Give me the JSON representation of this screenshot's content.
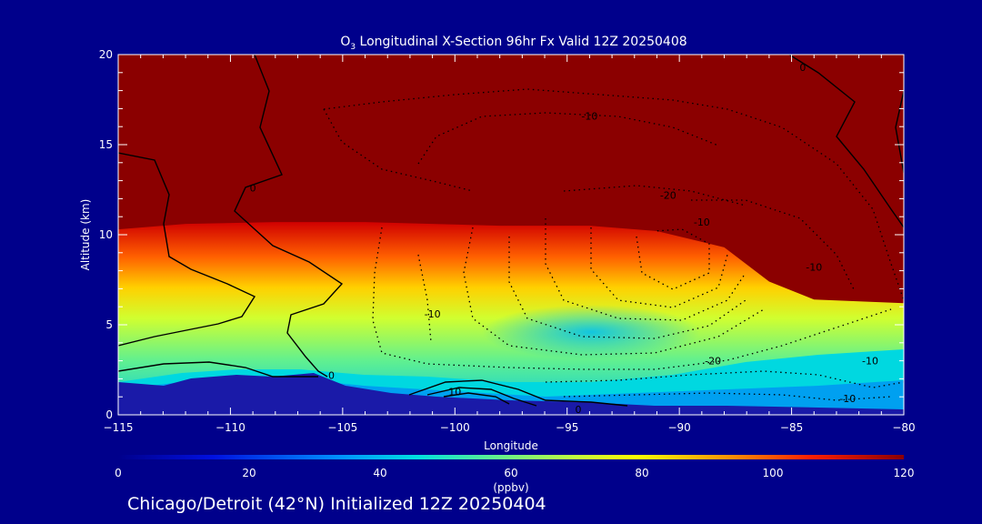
{
  "chart_data": {
    "type": "heatmap",
    "title_prefix": "O",
    "title_subscript": "3",
    "title_rest": " Longitudinal X-Section 96hr  Fx Valid 12Z 20250408",
    "xlabel": "Longitude",
    "ylabel": "Altitude (km)",
    "xlim": [
      -115,
      -80
    ],
    "ylim": [
      0,
      20
    ],
    "x_ticks": [
      -115,
      -110,
      -105,
      -100,
      -95,
      -90,
      -85,
      -80
    ],
    "y_ticks": [
      0,
      5,
      10,
      15,
      20
    ],
    "colorbar": {
      "label": "(ppbv)",
      "range": [
        0,
        120
      ],
      "ticks": [
        0,
        20,
        40,
        60,
        80,
        100,
        120
      ]
    },
    "colors": {
      "background": "#00008b",
      "ozone_high": "#8b0000",
      "terrain": "#1a1aa8"
    },
    "tropopause_km": [
      [
        -115,
        10.3
      ],
      [
        -112,
        10.6
      ],
      [
        -108,
        10.7
      ],
      [
        -104,
        10.7
      ],
      [
        -101,
        10.6
      ],
      [
        -98,
        10.5
      ],
      [
        -94,
        10.5
      ],
      [
        -91,
        10.2
      ],
      [
        -88,
        9.3
      ],
      [
        -86,
        7.4
      ],
      [
        -84,
        6.4
      ],
      [
        -82,
        6.3
      ],
      [
        -80,
        6.2
      ]
    ],
    "contour_labels": [
      {
        "text": "0",
        "lon": -109,
        "alt": 12.6
      },
      {
        "text": "0",
        "lon": -105.5,
        "alt": 2.2
      },
      {
        "text": "0",
        "lon": -94.5,
        "alt": 0.3
      },
      {
        "text": "0",
        "lon": -84.5,
        "alt": 19.3
      },
      {
        "text": "10",
        "lon": -100,
        "alt": 1.3
      },
      {
        "text": "-10",
        "lon": -94,
        "alt": 16.6
      },
      {
        "text": "-10",
        "lon": -101,
        "alt": 5.6
      },
      {
        "text": "-10",
        "lon": -89,
        "alt": 10.7
      },
      {
        "text": "-10",
        "lon": -81.5,
        "alt": 3.0
      },
      {
        "text": "-10",
        "lon": -82.5,
        "alt": 0.9
      },
      {
        "text": "-10",
        "lon": -84,
        "alt": 8.2
      },
      {
        "text": "-20",
        "lon": -90.5,
        "alt": 12.2
      },
      {
        "text": "-20",
        "lon": -88.5,
        "alt": 3.0
      }
    ],
    "footer": "Chicago/Detroit (42°N) Initialized 12Z 20250404"
  }
}
